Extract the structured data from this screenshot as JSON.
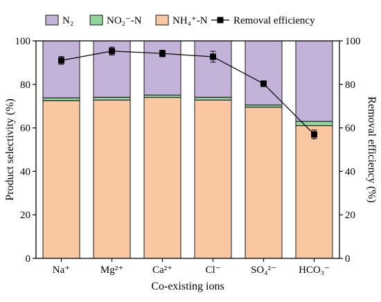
{
  "chart_data": {
    "type": "bar",
    "stacked": true,
    "categories": [
      "Na⁺",
      "Mg²⁺",
      "Ca²⁺",
      "Cl⁻",
      "SO₄²⁻",
      "HCO₃⁻"
    ],
    "xlabel": "Co-existing ions",
    "ylabel": "Product selectivity (%)",
    "y2label": "Removal efficiency (%)",
    "ylim": [
      0,
      100
    ],
    "y2lim": [
      0,
      100
    ],
    "yticks": [
      "0",
      "20",
      "40",
      "60",
      "80",
      "100"
    ],
    "legend_position": "top",
    "series": [
      {
        "name": "NH₄⁺-N",
        "color": "#f9c8a2",
        "values": [
          72.5,
          72.8,
          74.0,
          72.8,
          69.5,
          61.0
        ]
      },
      {
        "name": "NO₂⁻-N",
        "color": "#8fd49b",
        "values": [
          1.3,
          1.3,
          1.1,
          1.3,
          1.0,
          2.0
        ]
      },
      {
        "name": "N₂",
        "color": "#c3b3d8",
        "values": [
          26.2,
          25.9,
          24.9,
          25.9,
          29.5,
          37.0
        ]
      }
    ],
    "line_series": {
      "name": "Removal efficiency",
      "axis": "right",
      "color": "#000000",
      "values": [
        91,
        95.3,
        94.2,
        92.7,
        80.3,
        57
      ],
      "errors": [
        1.8,
        1.8,
        1.5,
        2.5,
        1.3,
        2.0
      ]
    }
  }
}
